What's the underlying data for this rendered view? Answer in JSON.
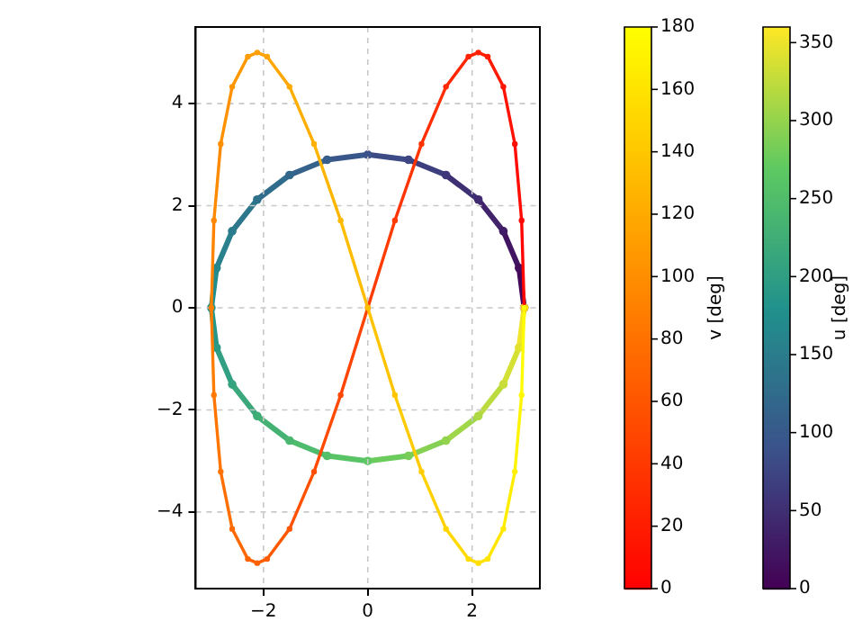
{
  "chart_data": [
    {
      "type": "scatter",
      "marker": "circle",
      "line_style": "solid",
      "xlim": [
        -3.3,
        3.3
      ],
      "ylim": [
        -5.5,
        5.5
      ],
      "xticks": [
        -2,
        0,
        2
      ],
      "yticks": [
        -4,
        -2,
        0,
        2,
        4
      ],
      "grid": true,
      "legend": false,
      "clabel": "v [deg]",
      "clim": [
        0,
        180
      ],
      "cticks": [
        0,
        20,
        40,
        60,
        80,
        100,
        120,
        140,
        160,
        180
      ],
      "series": [
        {
          "x": [
            3,
            2.95,
            2.82,
            2.6,
            2.3,
            2.12,
            1.93,
            1.5,
            1.03,
            0.52,
            0,
            -0.52,
            -1.03,
            -1.5,
            -1.93,
            -2.12,
            -2.3,
            -2.6,
            -2.82,
            -2.95,
            -3,
            -2.95,
            -2.82,
            -2.6,
            -2.3,
            -2.12,
            -1.93,
            -1.5,
            -1.03,
            -0.52,
            0,
            0.52,
            1.03,
            1.5,
            1.93,
            2.12,
            2.3,
            2.6,
            2.82,
            2.95,
            3
          ],
          "values": [
            0,
            1.71,
            3.21,
            4.33,
            4.92,
            5,
            4.92,
            4.33,
            3.21,
            1.71,
            0,
            -1.71,
            -3.21,
            -4.33,
            -4.92,
            -5,
            -4.92,
            -4.33,
            -3.21,
            -1.71,
            0,
            1.71,
            3.21,
            4.33,
            4.92,
            5,
            4.92,
            4.33,
            3.21,
            1.71,
            0,
            -1.71,
            -3.21,
            -4.33,
            -4.92,
            -5,
            -4.92,
            -4.33,
            -3.21,
            -1.71,
            0
          ],
          "cvalues": [
            0,
            5,
            10,
            15,
            20,
            22.5,
            25,
            30,
            35,
            40,
            45,
            50,
            55,
            60,
            65,
            67.5,
            70,
            75,
            80,
            85,
            90,
            95,
            100,
            105,
            110,
            112.5,
            115,
            120,
            125,
            130,
            135,
            140,
            145,
            150,
            155,
            157.5,
            160,
            165,
            170,
            175,
            180
          ]
        }
      ]
    },
    {
      "type": "scatter",
      "marker": "circle",
      "line_style": "solid",
      "xlim": [
        -3.3,
        3.3
      ],
      "ylim": [
        -5.5,
        5.5
      ],
      "tick_labels": false,
      "legend": false,
      "clabel": "u [deg]",
      "clim": [
        0,
        360
      ],
      "cticks": [
        0,
        50,
        100,
        150,
        200,
        250,
        300,
        350
      ],
      "series": [
        {
          "x": [
            3,
            2.9,
            2.6,
            2.12,
            1.5,
            0.78,
            0,
            -0.78,
            -1.5,
            -2.12,
            -2.6,
            -2.9,
            -3,
            -2.9,
            -2.6,
            -2.12,
            -1.5,
            -0.78,
            0,
            0.78,
            1.5,
            2.12,
            2.6,
            2.9,
            3
          ],
          "values": [
            0,
            0.78,
            1.5,
            2.12,
            2.6,
            2.9,
            3,
            2.9,
            2.6,
            2.12,
            1.5,
            0.78,
            0,
            -0.78,
            -1.5,
            -2.12,
            -2.6,
            -2.9,
            -3,
            -2.9,
            -2.6,
            -2.12,
            -1.5,
            -0.78,
            0
          ],
          "cvalues": [
            0,
            15,
            30,
            45,
            60,
            75,
            90,
            105,
            120,
            135,
            150,
            165,
            180,
            195,
            210,
            225,
            240,
            255,
            270,
            285,
            300,
            315,
            330,
            345,
            360
          ]
        }
      ]
    }
  ]
}
